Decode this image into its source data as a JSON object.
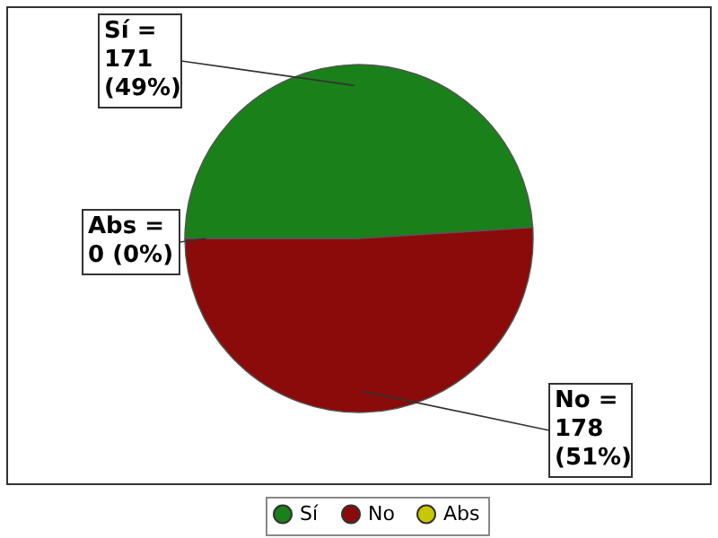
{
  "chart_data": {
    "type": "pie",
    "categories": [
      "Sí",
      "No",
      "Abs"
    ],
    "values": [
      171,
      178,
      0
    ],
    "colors": [
      "#1a801a",
      "#8b0a0a",
      "#c8c800"
    ],
    "value_labels": [
      "Sí =\n171\n(49%)",
      "No =\n178\n(51%)",
      "Abs =\n0 (0%)"
    ],
    "legend": "bottom"
  }
}
